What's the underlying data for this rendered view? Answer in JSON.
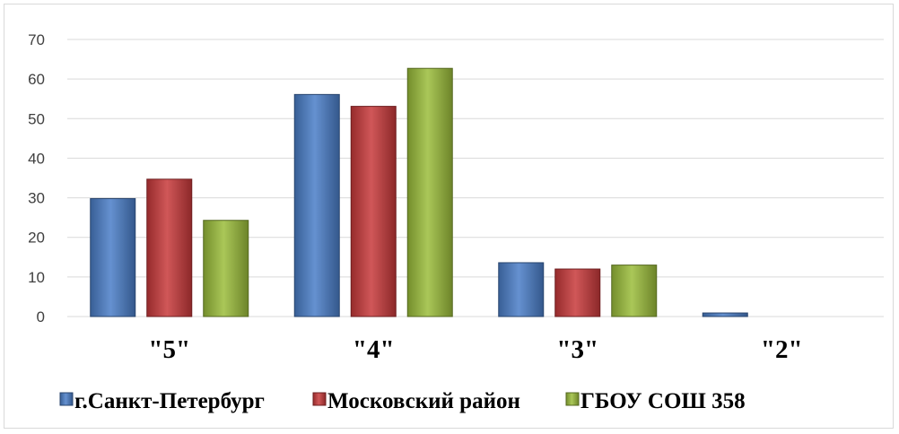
{
  "chart_data": {
    "type": "bar",
    "title": "",
    "xlabel": "",
    "ylabel": "",
    "ylim": [
      0,
      70
    ],
    "yticks": [
      "0",
      "10",
      "20",
      "30",
      "40",
      "50",
      "60",
      "70"
    ],
    "grid": true,
    "legend_position": "bottom",
    "categories": [
      "\"5\"",
      "\"4\"",
      "\"3\"",
      "\"2\""
    ],
    "series": [
      {
        "name": "г.Санкт-Петербург",
        "color": "#4a7ec8",
        "values": [
          29.8,
          56.1,
          13.6,
          0.9
        ]
      },
      {
        "name": "Московский район",
        "color": "#c8393a",
        "values": [
          34.7,
          53.1,
          12.0,
          0
        ]
      },
      {
        "name": "ГБОУ СОШ 358",
        "color": "#9bbd3a",
        "values": [
          24.3,
          62.7,
          13.0,
          0
        ]
      }
    ]
  }
}
